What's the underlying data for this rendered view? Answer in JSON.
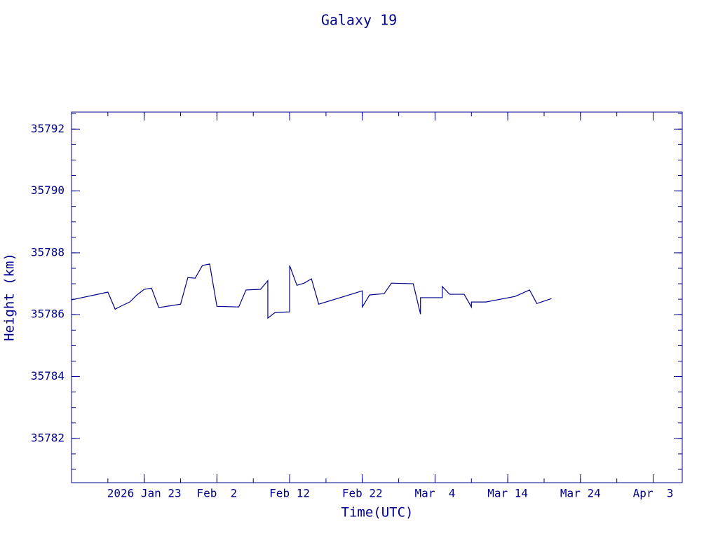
{
  "chart_data": {
    "type": "line",
    "title": "Galaxy 19",
    "xlabel": "Time(UTC)",
    "ylabel": "Height (km)",
    "color": "#00008b",
    "xlim": [
      "2026-01-13",
      "2026-04-07"
    ],
    "xticks": [
      {
        "value": "2026-01-23",
        "label": "2026 Jan 23"
      },
      {
        "value": "2026-02-02",
        "label": "Feb  2"
      },
      {
        "value": "2026-02-12",
        "label": "Feb 12"
      },
      {
        "value": "2026-02-22",
        "label": "Feb 22"
      },
      {
        "value": "2026-03-04",
        "label": "Mar  4"
      },
      {
        "value": "2026-03-14",
        "label": "Mar 14"
      },
      {
        "value": "2026-03-24",
        "label": "Mar 24"
      },
      {
        "value": "2026-04-03",
        "label": "Apr  3"
      }
    ],
    "ylim": [
      35780.57,
      35792.55
    ],
    "yticks": [
      35782,
      35784,
      35786,
      35788,
      35790,
      35792
    ],
    "x": [
      "2026-01-13",
      "2026-01-18",
      "2026-01-19",
      "2026-01-20",
      "2026-01-21",
      "2026-01-22",
      "2026-01-23",
      "2026-01-24",
      "2026-01-25",
      "2026-01-28",
      "2026-01-29",
      "2026-01-30",
      "2026-01-31",
      "2026-02-01",
      "2026-02-02",
      "2026-02-05",
      "2026-02-06",
      "2026-02-08",
      "2026-02-09",
      "2026-02-09",
      "2026-02-10",
      "2026-02-12",
      "2026-02-12",
      "2026-02-13",
      "2026-02-14",
      "2026-02-15",
      "2026-02-16",
      "2026-02-22",
      "2026-02-22",
      "2026-02-23",
      "2026-02-25",
      "2026-02-26",
      "2026-03-01",
      "2026-03-02",
      "2026-03-02",
      "2026-03-05",
      "2026-03-05",
      "2026-03-06",
      "2026-03-08",
      "2026-03-09",
      "2026-03-09",
      "2026-03-11",
      "2026-03-15",
      "2026-03-17",
      "2026-03-18",
      "2026-03-20"
    ],
    "values": [
      35786.48,
      35786.73,
      35786.18,
      35786.3,
      35786.41,
      35786.64,
      35786.82,
      35786.86,
      35786.23,
      35786.34,
      35787.2,
      35787.18,
      35787.59,
      35787.64,
      35786.27,
      35786.25,
      35786.8,
      35786.82,
      35787.1,
      35785.89,
      35786.07,
      35786.09,
      35787.59,
      35786.95,
      35787.02,
      35787.16,
      35786.34,
      35786.77,
      35786.25,
      35786.64,
      35786.68,
      35787.02,
      35787.0,
      35786.02,
      35786.55,
      35786.55,
      35786.91,
      35786.66,
      35786.66,
      35786.25,
      35786.41,
      35786.41,
      35786.59,
      35786.8,
      35786.36,
      35786.52
    ]
  }
}
